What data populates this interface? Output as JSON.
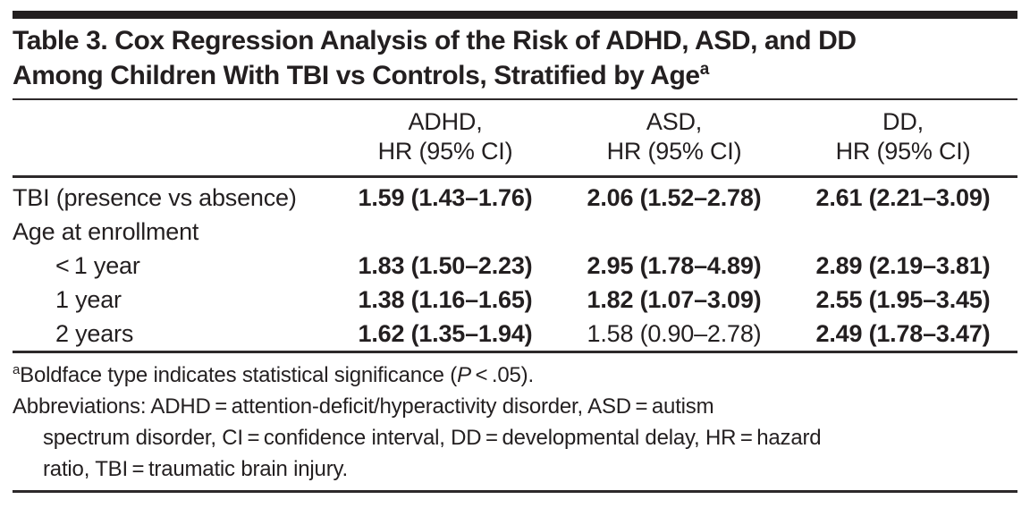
{
  "title": {
    "line1": "Table 3. Cox Regression Analysis of the Risk of ADHD, ASD, and DD",
    "line2": "Among Children With TBI vs Controls, Stratified by Age",
    "superscript": "a"
  },
  "table": {
    "columns": [
      {
        "line1": "ADHD,",
        "line2": "HR (95% CI)"
      },
      {
        "line1": "ASD,",
        "line2": "HR (95% CI)"
      },
      {
        "line1": "DD,",
        "line2": "HR (95% CI)"
      }
    ],
    "rows": [
      {
        "label": "TBI (presence vs absence)",
        "indent": false,
        "values": [
          {
            "text": "1.59 (1.43–1.76)",
            "significant": true
          },
          {
            "text": "2.06 (1.52–2.78)",
            "significant": true
          },
          {
            "text": "2.61 (2.21–3.09)",
            "significant": true
          }
        ]
      },
      {
        "label": "Age at enrollment",
        "indent": false,
        "values": []
      },
      {
        "label": "< 1 year",
        "indent": true,
        "values": [
          {
            "text": "1.83 (1.50–2.23)",
            "significant": true
          },
          {
            "text": "2.95 (1.78–4.89)",
            "significant": true
          },
          {
            "text": "2.89 (2.19–3.81)",
            "significant": true
          }
        ]
      },
      {
        "label": "1 year",
        "indent": true,
        "values": [
          {
            "text": "1.38 (1.16–1.65)",
            "significant": true
          },
          {
            "text": "1.82 (1.07–3.09)",
            "significant": true
          },
          {
            "text": "2.55 (1.95–3.45)",
            "significant": true
          }
        ]
      },
      {
        "label": "2 years",
        "indent": true,
        "values": [
          {
            "text": "1.62 (1.35–1.94)",
            "significant": true
          },
          {
            "text": "1.58 (0.90–2.78)",
            "significant": false
          },
          {
            "text": "2.49 (1.78–3.47)",
            "significant": true
          }
        ]
      }
    ]
  },
  "footnotes": {
    "marker": "a",
    "significance_prefix": "Boldface type indicates statistical significance (",
    "significance_p": "P",
    "significance_suffix": " < .05).",
    "abbreviations": [
      "Abbreviations: ADHD = attention-deficit/hyperactivity disorder, ASD = autism",
      "spectrum disorder, CI = confidence interval, DD = developmental delay, HR = hazard",
      "ratio, TBI = traumatic brain injury."
    ]
  },
  "colors": {
    "text": "#231f20",
    "rule": "#2d292a",
    "background": "#ffffff"
  }
}
